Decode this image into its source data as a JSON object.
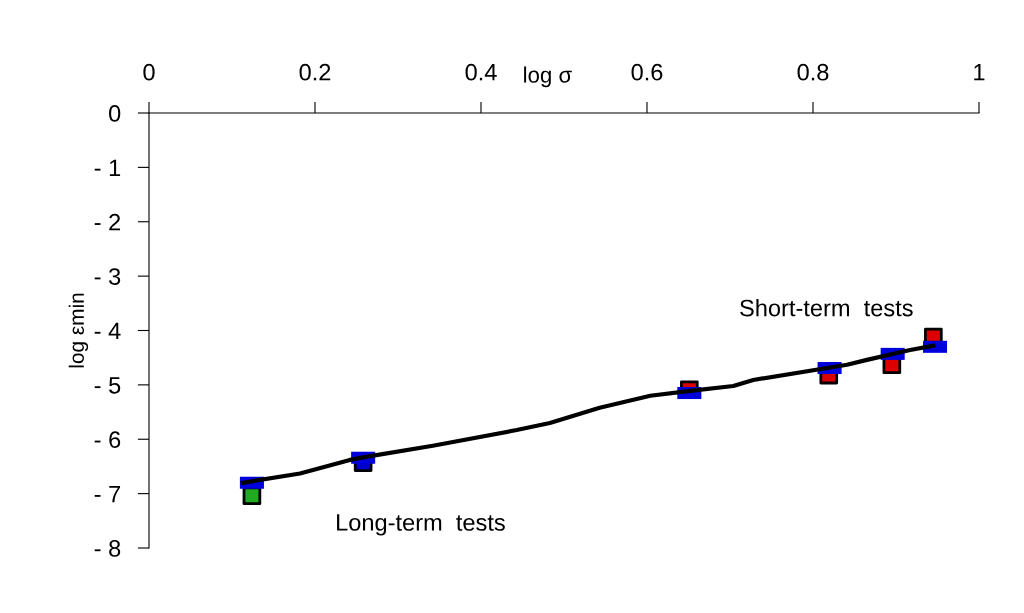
{
  "chart_data": {
    "type": "scatter",
    "xlabel": "log σ",
    "ylabel": "log εmin",
    "xlim": [
      0,
      1
    ],
    "xticks": [
      0,
      0.2,
      0.4,
      0.6,
      0.8,
      1
    ],
    "ylim": [
      -8,
      0
    ],
    "yticks": [
      0,
      {
        "value": -1,
        "label": "- 1"
      },
      {
        "value": -2,
        "label": "- 2"
      },
      {
        "value": -3,
        "label": "- 3"
      },
      {
        "value": -4,
        "label": "- 4"
      },
      {
        "value": -5,
        "label": "- 5"
      },
      {
        "value": -6,
        "label": "- 6"
      },
      {
        "value": -7,
        "label": "- 7"
      },
      {
        "value": -8,
        "label": "- 8"
      }
    ],
    "grid": false,
    "legend": false,
    "series": [
      {
        "type": "line",
        "color": "#000000",
        "marker": "none",
        "line_style": "solid",
        "x": [
          0.113,
          0.182,
          0.242,
          0.263,
          0.342,
          0.443,
          0.483,
          0.543,
          0.604,
          0.652,
          0.704,
          0.728,
          0.841,
          0.865,
          0.917,
          0.945
        ],
        "values": [
          -6.8,
          -6.63,
          -6.38,
          -6.32,
          -6.12,
          -5.83,
          -5.7,
          -5.42,
          -5.2,
          -5.11,
          -5.02,
          -4.91,
          -4.63,
          -4.54,
          -4.36,
          -4.28
        ]
      },
      {
        "color": "#22aa22",
        "marker": "square",
        "x": [
          0.124
        ],
        "values": [
          -7.04
        ]
      },
      {
        "color": "#0000cc",
        "marker": "square",
        "x": [
          0.258
        ],
        "values": [
          -6.43
        ]
      },
      {
        "color": "#dd0000",
        "marker": "square",
        "x": [
          0.651,
          0.819,
          0.895,
          0.945
        ],
        "values": [
          -5.09,
          -4.82,
          -4.63,
          -4.12
        ]
      },
      {
        "color": "#0000dd",
        "x": [
          0.124,
          0.258,
          0.651,
          0.82,
          0.896,
          0.947
        ],
        "values": [
          -6.8,
          -6.34,
          -5.15,
          -4.69,
          -4.43,
          -4.3
        ]
      }
    ],
    "annotations": [
      "Long-term  tests",
      "Short-term  tests"
    ]
  }
}
